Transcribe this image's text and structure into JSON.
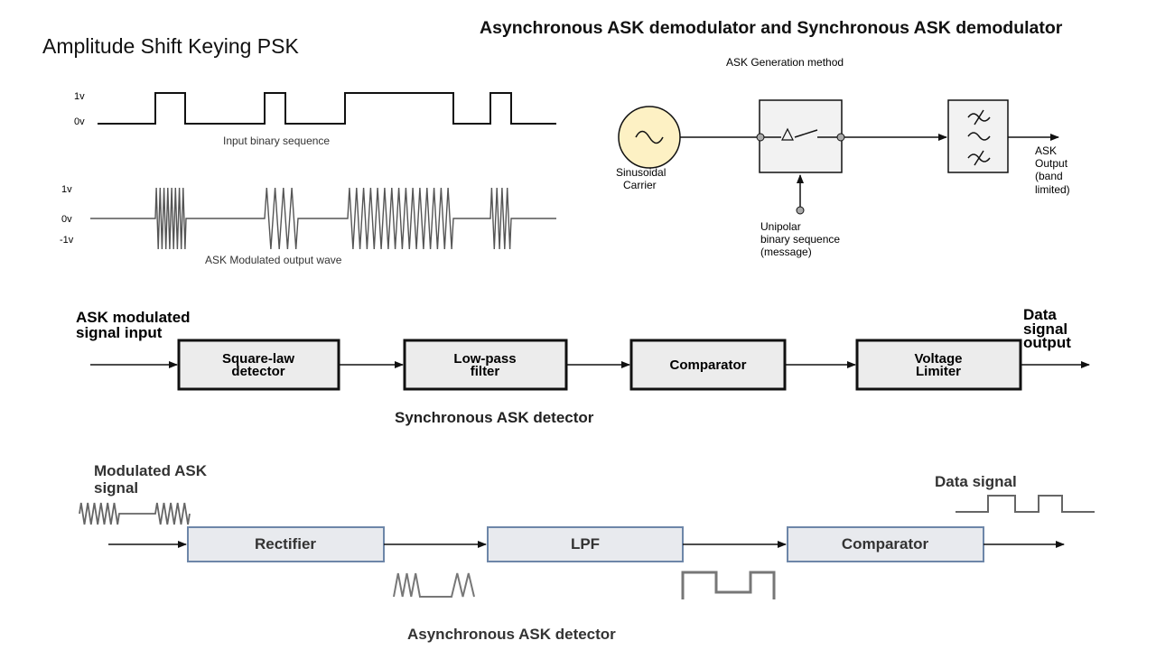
{
  "slide_title": "Amplitude Shift Keying PSK",
  "right_title": "Asynchronous ASK demodulator and Synchronous ASK demodulator",
  "waveforms": {
    "input_hi": "1v",
    "input_lo": "0v",
    "input_caption": "Input binary sequence",
    "mod_hi": "1v",
    "mod_mid": "0v",
    "mod_lo": "-1v",
    "mod_caption": "ASK Modulated output wave"
  },
  "generation": {
    "title": "ASK Generation method",
    "carrier_line1": "Sinusoidal",
    "carrier_line2": "Carrier",
    "message_line1": "Unipolar",
    "message_line2": "binary sequence",
    "message_line3": "(message)",
    "output_line1": "ASK",
    "output_line2": "Output",
    "output_line3": "(band",
    "output_line4": "limited)"
  },
  "sync_detector": {
    "input_line1": "ASK modulated",
    "input_line2": "signal input",
    "blocks": [
      {
        "line1": "Square-law",
        "line2": "detector"
      },
      {
        "line1": "Low-pass",
        "line2": "filter"
      },
      {
        "line1": "Comparator",
        "line2": ""
      },
      {
        "line1": "Voltage",
        "line2": "Limiter"
      }
    ],
    "output_line1": "Data",
    "output_line2": "signal",
    "output_line3": "output",
    "caption": "Synchronous ASK detector"
  },
  "async_detector": {
    "input_line1": "Modulated ASK",
    "input_line2": "signal",
    "blocks": [
      "Rectifier",
      "LPF",
      "Comparator"
    ],
    "output_label": "Data signal",
    "caption": "Asynchronous ASK detector"
  }
}
